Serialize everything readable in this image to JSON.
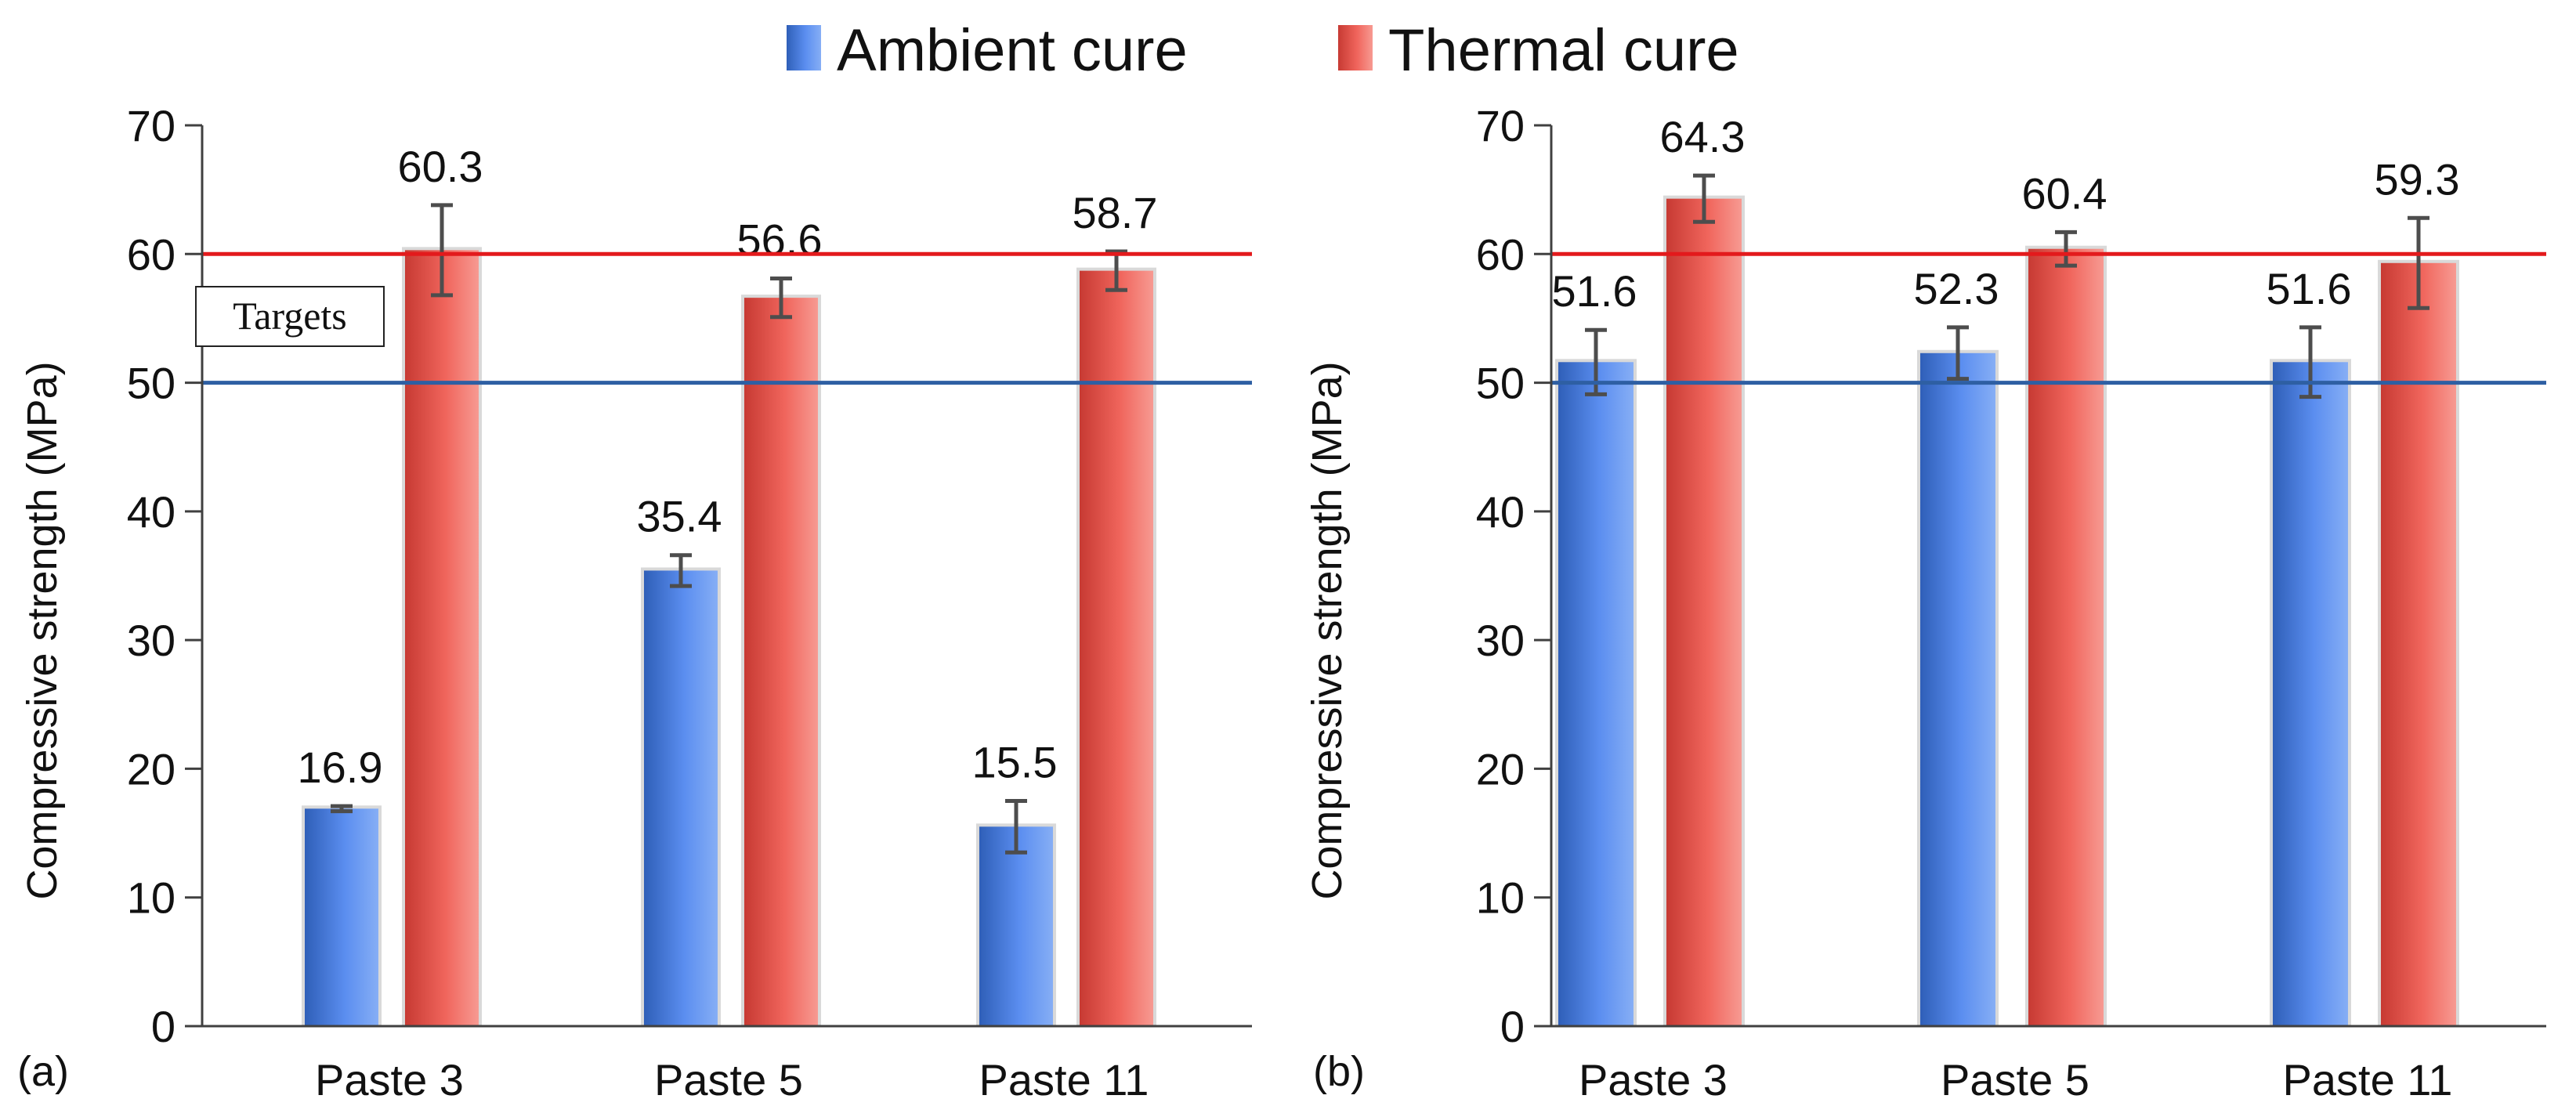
{
  "legend": {
    "ambient_label": "Ambient cure",
    "thermal_label": "Thermal cure"
  },
  "colors": {
    "ambient": "#4f84e6",
    "thermal": "#ea5850",
    "target_ambient_line": "#2e5fa3",
    "target_thermal_line": "#e31a1c",
    "error_bar": "#4d4d4d"
  },
  "chart_data": [
    {
      "type": "bar",
      "panel_letter": "(a)",
      "ylabel": "Compressive strength (MPa)",
      "ylim": [
        0,
        70
      ],
      "yticks": [
        0,
        10,
        20,
        30,
        40,
        50,
        60,
        70
      ],
      "categories": [
        "Paste 3",
        "Paste 5",
        "Paste 11"
      ],
      "series": [
        {
          "name": "Ambient cure",
          "values": [
            16.9,
            35.4,
            15.5
          ],
          "errors": [
            0.2,
            1.2,
            2.0
          ],
          "labels": [
            "16.9",
            "35.4",
            "15.5"
          ]
        },
        {
          "name": "Thermal cure",
          "values": [
            60.3,
            56.6,
            58.7
          ],
          "errors": [
            3.5,
            1.5,
            1.5
          ],
          "labels": [
            "60.3",
            "56.6",
            "58.7"
          ]
        }
      ],
      "target_lines": [
        {
          "value": 60,
          "color": "#e31a1c"
        },
        {
          "value": 50,
          "color": "#2e5fa3"
        }
      ],
      "annotation": "Targets"
    },
    {
      "type": "bar",
      "panel_letter": "(b)",
      "ylabel": "Compressive strength (MPa)",
      "ylim": [
        0,
        70
      ],
      "yticks": [
        0,
        10,
        20,
        30,
        40,
        50,
        60,
        70
      ],
      "categories": [
        "Paste 3",
        "Paste 5",
        "Paste 11"
      ],
      "series": [
        {
          "name": "Ambient cure",
          "values": [
            51.6,
            52.3,
            51.6
          ],
          "errors": [
            2.5,
            2.0,
            2.7
          ],
          "labels": [
            "51.6",
            "52.3",
            "51.6"
          ]
        },
        {
          "name": "Thermal cure",
          "values": [
            64.3,
            60.4,
            59.3
          ],
          "errors": [
            1.8,
            1.3,
            3.5
          ],
          "labels": [
            "64.3",
            "60.4",
            "59.3"
          ]
        }
      ],
      "target_lines": [
        {
          "value": 60,
          "color": "#e31a1c"
        },
        {
          "value": 50,
          "color": "#2e5fa3"
        }
      ],
      "annotation": ""
    }
  ]
}
